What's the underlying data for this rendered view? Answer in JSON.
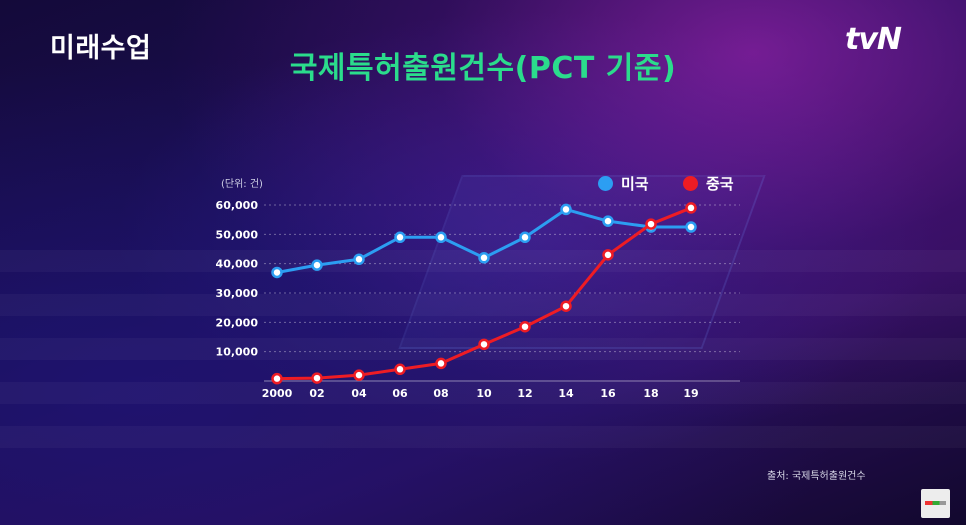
{
  "program_logo": "미래수업",
  "channel_logo": "tvN",
  "chart_data": {
    "type": "line",
    "title": "국제특허출원건수(PCT 기준)",
    "unit_label": "(단위: 건)",
    "source": "출처: 국제특허출원건수",
    "categories": [
      "2000",
      "02",
      "04",
      "06",
      "08",
      "10",
      "12",
      "14",
      "16",
      "18",
      "19"
    ],
    "ylim": [
      0,
      60000
    ],
    "yticks": [
      "10,000",
      "20,000",
      "30,000",
      "40,000",
      "50,000",
      "60,000"
    ],
    "grid": true,
    "legend_position": "top-right",
    "series": [
      {
        "name": "미국",
        "color": "#2c9ef2",
        "values": [
          37000,
          39500,
          41500,
          49000,
          49000,
          42000,
          49000,
          58500,
          54500,
          52500,
          52500
        ]
      },
      {
        "name": "중국",
        "color": "#ee1c24",
        "values": [
          800,
          1000,
          2000,
          4000,
          6000,
          12500,
          18500,
          25500,
          43000,
          53500,
          59000
        ]
      }
    ]
  }
}
